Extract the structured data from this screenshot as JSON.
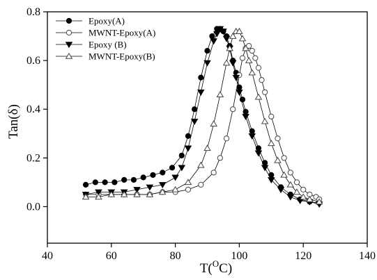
{
  "chart_data": {
    "type": "scatter",
    "xlabel": "T(",
    "xlabel_sup": "O",
    "xlabel_unit": "C)",
    "ylabel": "Tan(δ)",
    "xlim": [
      40,
      140
    ],
    "ylim": [
      -0.15,
      0.8
    ],
    "xticks": [
      "40",
      "60",
      "80",
      "100",
      "120",
      "140"
    ],
    "yticks": [
      "0.0",
      "0.2",
      "0.4",
      "0.6",
      "0.8"
    ],
    "grid": false,
    "legend_position": "top-left",
    "series": [
      {
        "name": "Epoxy(A)",
        "marker": "circle-filled",
        "x": [
          52,
          55,
          58,
          61,
          64,
          67,
          70,
          73,
          76,
          79,
          82,
          84,
          86,
          88,
          90,
          91.5,
          93,
          94,
          95,
          96,
          97,
          98,
          99,
          100,
          101,
          102,
          104,
          106,
          108,
          110,
          113,
          116,
          119,
          122,
          125
        ],
        "y": [
          0.09,
          0.1,
          0.1,
          0.1,
          0.11,
          0.11,
          0.12,
          0.13,
          0.14,
          0.16,
          0.21,
          0.29,
          0.4,
          0.53,
          0.64,
          0.7,
          0.73,
          0.73,
          0.72,
          0.7,
          0.66,
          0.6,
          0.55,
          0.49,
          0.44,
          0.39,
          0.31,
          0.24,
          0.18,
          0.13,
          0.08,
          0.05,
          0.03,
          0.02,
          0.015
        ]
      },
      {
        "name": "MWNT-Epoxy(A)",
        "marker": "circle-open",
        "x": [
          52,
          56,
          60,
          64,
          68,
          72,
          76,
          80,
          84,
          88,
          92,
          94,
          96,
          98,
          100,
          101,
          102,
          103,
          104,
          105,
          106,
          107,
          108,
          110,
          112,
          114,
          116,
          118,
          120,
          122,
          124,
          125
        ],
        "y": [
          0.05,
          0.05,
          0.05,
          0.05,
          0.05,
          0.05,
          0.06,
          0.06,
          0.07,
          0.09,
          0.14,
          0.2,
          0.28,
          0.4,
          0.54,
          0.61,
          0.65,
          0.66,
          0.64,
          0.61,
          0.57,
          0.52,
          0.47,
          0.37,
          0.28,
          0.2,
          0.14,
          0.1,
          0.07,
          0.05,
          0.04,
          0.03
        ]
      },
      {
        "name": "Epoxy (B)",
        "marker": "triangle-down-filled",
        "x": [
          52,
          56,
          60,
          64,
          68,
          72,
          76,
          80,
          82,
          84,
          86,
          88,
          90,
          92,
          93,
          94,
          95,
          96,
          97,
          98,
          99,
          100,
          102,
          104,
          106,
          108,
          110,
          113,
          116,
          119,
          122,
          125
        ],
        "y": [
          0.05,
          0.06,
          0.06,
          0.06,
          0.07,
          0.08,
          0.09,
          0.12,
          0.16,
          0.24,
          0.35,
          0.47,
          0.59,
          0.68,
          0.71,
          0.73,
          0.72,
          0.69,
          0.65,
          0.59,
          0.53,
          0.47,
          0.37,
          0.29,
          0.22,
          0.16,
          0.11,
          0.07,
          0.04,
          0.025,
          0.02,
          0.01
        ]
      },
      {
        "name": "MWNT-Epoxy(B)",
        "marker": "triangle-up-open",
        "x": [
          52,
          56,
          60,
          64,
          68,
          72,
          76,
          80,
          84,
          88,
          90,
          92,
          94,
          96,
          97,
          98,
          99,
          100,
          101,
          102,
          103,
          104,
          106,
          108,
          110,
          112,
          114,
          116,
          118,
          120,
          122,
          125
        ],
        "y": [
          0.04,
          0.04,
          0.05,
          0.05,
          0.05,
          0.05,
          0.06,
          0.07,
          0.1,
          0.17,
          0.24,
          0.34,
          0.46,
          0.59,
          0.65,
          0.7,
          0.72,
          0.72,
          0.69,
          0.65,
          0.6,
          0.55,
          0.45,
          0.35,
          0.26,
          0.19,
          0.13,
          0.09,
          0.06,
          0.04,
          0.03,
          0.02
        ]
      }
    ]
  }
}
